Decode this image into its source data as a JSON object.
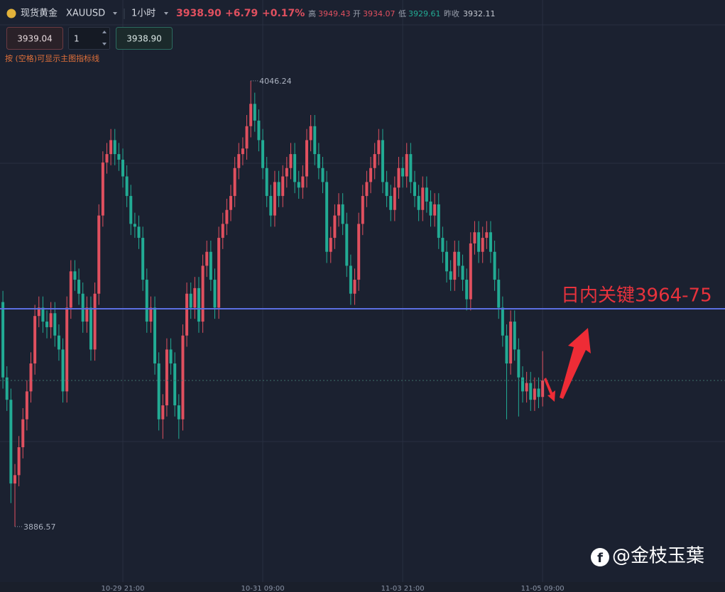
{
  "toolbar": {
    "name": "现货黄金",
    "symbol": "XAUUSD",
    "interval": "1小时",
    "price": "3938.90",
    "change": "+6.79",
    "change_pct": "+0.17%",
    "high_label": "高",
    "high": "3949.43",
    "open_label": "开",
    "open": "3934.07",
    "low_label": "低",
    "low": "3929.61",
    "prev_label": "昨收",
    "prev": "3932.11",
    "sell": "3939.04",
    "quantity": "1",
    "buy": "3938.90",
    "hint": "按 (空格)可显示主图指标线"
  },
  "watermark": "@金枝玉葉",
  "chart_data": {
    "type": "candlestick",
    "up_color": "#e0505f",
    "down_color": "#22ab94",
    "annotation": "日内关键3964-75",
    "reference_line": {
      "value": 3964.6,
      "color": "#5b6ee1"
    },
    "ylim": [
      3866.7,
      4075.2
    ],
    "categories": [
      null,
      null,
      null,
      null,
      null,
      null,
      null,
      null,
      null,
      null,
      null,
      null,
      null,
      null,
      null,
      null,
      null,
      null,
      null,
      null,
      null,
      null,
      null,
      null,
      null,
      null,
      null,
      null,
      null,
      null,
      "10-29 21:00",
      null,
      null,
      null,
      null,
      null,
      null,
      null,
      null,
      null,
      null,
      null,
      null,
      null,
      null,
      null,
      null,
      null,
      null,
      null,
      null,
      null,
      null,
      null,
      null,
      null,
      null,
      null,
      null,
      null,
      null,
      null,
      null,
      null,
      null,
      "10-31 09:00",
      null,
      null,
      null,
      null,
      null,
      null,
      null,
      null,
      null,
      null,
      null,
      null,
      null,
      null,
      null,
      null,
      null,
      null,
      null,
      null,
      null,
      null,
      null,
      null,
      null,
      null,
      null,
      null,
      null,
      null,
      null,
      null,
      null,
      null,
      "11-03 21:00",
      null,
      null,
      null,
      null,
      null,
      null,
      null,
      null,
      null,
      null,
      null,
      null,
      null,
      null,
      null,
      null,
      null,
      null,
      null,
      null,
      null,
      null,
      null,
      null,
      null,
      null,
      null,
      null,
      null,
      null,
      null,
      null,
      null,
      null,
      "11-05 09:00"
    ],
    "open": [
      3967,
      3940,
      3932,
      3902,
      3905,
      3915,
      3925,
      3935,
      3945,
      3962,
      3965,
      3960,
      3958,
      3963,
      3955,
      3950,
      3935,
      3965,
      3978,
      3975,
      3970,
      3960,
      3965,
      3950,
      3970,
      3998,
      4017,
      4020,
      4025,
      4020,
      4018,
      4012,
      4005,
      3995,
      3994,
      3990,
      3975,
      3960,
      3965,
      3945,
      3925,
      3930,
      3950,
      3945,
      3930,
      3925,
      3955,
      3970,
      3965,
      3972,
      3960,
      3980,
      3985,
      3975,
      3965,
      3990,
      3995,
      4000,
      4005,
      4015,
      4020,
      4022,
      4030,
      4038,
      4032,
      4025,
      4015,
      4005,
      3998,
      4010,
      4005,
      4012,
      4015,
      4020,
      4010,
      4008,
      4012,
      4025,
      4030,
      4020,
      4015,
      4010,
      3985,
      3990,
      3998,
      4002,
      3995,
      3980,
      3970,
      3975,
      3995,
      4005,
      4010,
      4015,
      4020,
      4025,
      4010,
      4005,
      4000,
      4008,
      4015,
      4012,
      4020,
      4010,
      4005,
      4000,
      4008,
      4003,
      3998,
      4002,
      3990,
      3985,
      3978,
      3975,
      3985,
      3980,
      3975,
      3968,
      3988,
      3992,
      3985,
      3990,
      3992,
      3985,
      3975,
      3965,
      3955,
      3945,
      3960,
      3950,
      3940,
      3935,
      3938,
      3932,
      3936,
      3933
    ],
    "high": [
      3971,
      3944,
      3936,
      3909,
      3919,
      3929,
      3939,
      3949,
      3966,
      3969,
      3969,
      3964,
      3967,
      3967,
      3959,
      3954,
      3969,
      3982,
      3982,
      3979,
      3974,
      3969,
      3969,
      3974,
      4002,
      4021,
      4024,
      4029,
      4029,
      4024,
      4022,
      4016,
      4009,
      3999,
      3998,
      3994,
      3979,
      3969,
      3969,
      3949,
      3934,
      3954,
      3954,
      3949,
      3934,
      3959,
      3974,
      3974,
      3976,
      3976,
      3984,
      3989,
      3989,
      3979,
      3994,
      3999,
      4004,
      4009,
      4019,
      4024,
      4026,
      4034,
      4046.24,
      4042,
      4036,
      4029,
      4019,
      4009,
      4014,
      4014,
      4016,
      4019,
      4024,
      4024,
      4014,
      4016,
      4029,
      4034,
      4034,
      4024,
      4019,
      4014,
      3994,
      4002,
      4006,
      4006,
      3999,
      3984,
      3979,
      3999,
      4009,
      4014,
      4019,
      4024,
      4029,
      4029,
      4014,
      4009,
      4012,
      4019,
      4019,
      4024,
      4024,
      4014,
      4009,
      4012,
      4012,
      4007,
      4006,
      4006,
      3994,
      3989,
      3982,
      3989,
      3989,
      3984,
      3979,
      3992,
      3996,
      3996,
      3994,
      3996,
      3996,
      3989,
      3979,
      3969,
      3959,
      3964,
      3964,
      3954,
      3944,
      3942,
      3942,
      3940,
      3940,
      3949.43
    ],
    "low": [
      3936,
      3928,
      3895,
      3886.57,
      3901,
      3911,
      3921,
      3931,
      3941,
      3958,
      3956,
      3954,
      3954,
      3951,
      3946,
      3931,
      3931,
      3961,
      3971,
      3966,
      3956,
      3956,
      3946,
      3946,
      3966,
      3994,
      4013,
      4016,
      4016,
      4014,
      4008,
      4001,
      3991,
      3990,
      3986,
      3971,
      3956,
      3956,
      3941,
      3921,
      3918,
      3926,
      3941,
      3926,
      3918,
      3921,
      3951,
      3961,
      3961,
      3956,
      3956,
      3976,
      3971,
      3961,
      3961,
      3986,
      3991,
      3996,
      4001,
      4011,
      4016,
      4018,
      4026,
      4028,
      4021,
      4011,
      4001,
      3994,
      3994,
      4001,
      4001,
      4008,
      4011,
      4006,
      4004,
      4004,
      4008,
      4021,
      4016,
      4011,
      4006,
      3981,
      3981,
      3986,
      3994,
      3991,
      3976,
      3966,
      3966,
      3971,
      3991,
      4001,
      4006,
      4011,
      4016,
      4006,
      4001,
      3996,
      3996,
      4004,
      4008,
      4008,
      4006,
      4001,
      3996,
      3996,
      3999,
      3994,
      3994,
      3986,
      3981,
      3974,
      3971,
      3971,
      3976,
      3971,
      3964,
      3964,
      3984,
      3981,
      3981,
      3986,
      3981,
      3971,
      3961,
      3951,
      3925,
      3941,
      3946,
      3926,
      3931,
      3931,
      3928,
      3928,
      3929,
      3929.61
    ],
    "close": [
      3940,
      3932,
      3902,
      3905,
      3915,
      3925,
      3935,
      3945,
      3962,
      3965,
      3960,
      3958,
      3963,
      3955,
      3950,
      3935,
      3965,
      3978,
      3975,
      3970,
      3960,
      3965,
      3950,
      3970,
      3998,
      4017,
      4020,
      4025,
      4020,
      4018,
      4012,
      4005,
      3995,
      3994,
      3990,
      3975,
      3960,
      3965,
      3945,
      3925,
      3930,
      3950,
      3945,
      3930,
      3925,
      3955,
      3970,
      3965,
      3972,
      3960,
      3980,
      3985,
      3975,
      3965,
      3990,
      3995,
      4000,
      4005,
      4015,
      4020,
      4022,
      4030,
      4038,
      4032,
      4025,
      4015,
      4005,
      3998,
      4010,
      4005,
      4012,
      4015,
      4020,
      4010,
      4008,
      4012,
      4025,
      4030,
      4020,
      4015,
      4010,
      3985,
      3990,
      3998,
      4002,
      3995,
      3980,
      3970,
      3975,
      3995,
      4005,
      4010,
      4015,
      4020,
      4025,
      4010,
      4005,
      4000,
      4008,
      4015,
      4012,
      4020,
      4010,
      4005,
      4000,
      4008,
      4003,
      3998,
      4002,
      3990,
      3985,
      3978,
      3975,
      3985,
      3980,
      3975,
      3968,
      3988,
      3992,
      3985,
      3990,
      3992,
      3985,
      3975,
      3965,
      3955,
      3945,
      3960,
      3950,
      3940,
      3935,
      3938,
      3932,
      3936,
      3933,
      3938.9
    ]
  }
}
